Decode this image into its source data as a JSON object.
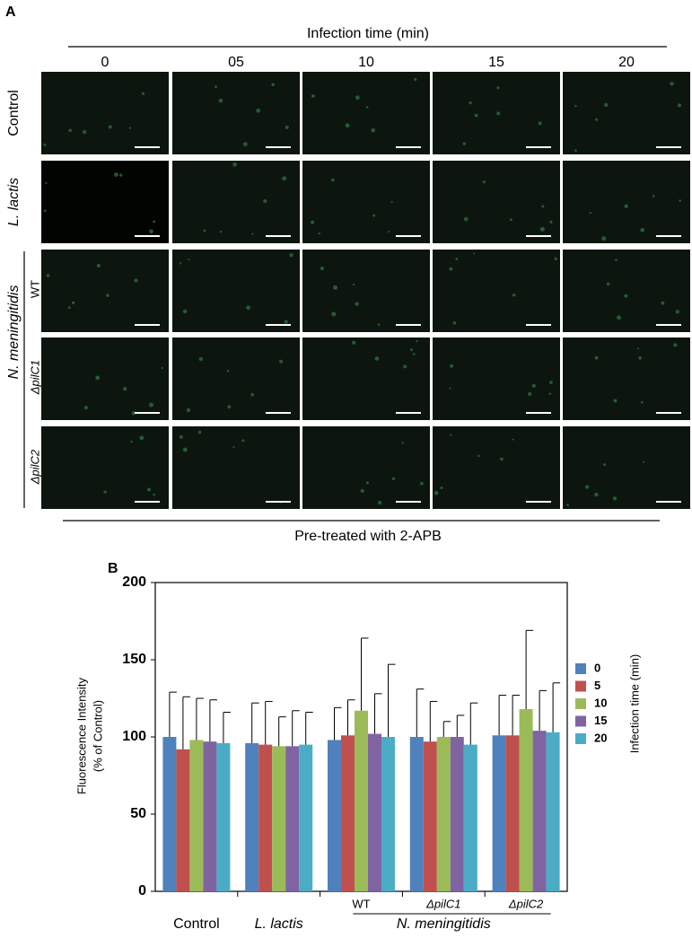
{
  "panel_a": {
    "label": "A",
    "header": "Infection time  (min)",
    "columns": [
      "0",
      "05",
      "10",
      "15",
      "20"
    ],
    "rows": [
      "Control",
      "L. lactis",
      "WT",
      "ΔpilC1",
      "ΔpilC2"
    ],
    "group_label": "N. meningitidis",
    "footer": "Pre-treated with 2-APB"
  },
  "chart_data": {
    "type": "bar",
    "panel_label": "B",
    "y_label": [
      "Fluorescence Intensity",
      "(% of Control)"
    ],
    "categories": [
      "Control",
      "L. lactis",
      "WT",
      "ΔpilC1",
      "ΔpilC2"
    ],
    "category_group": "N. meningitidis",
    "legend_title": "Infection time  (min)",
    "ylim": [
      0,
      200
    ],
    "yticks": [
      0,
      50,
      100,
      150,
      200
    ],
    "series": [
      {
        "name": "0",
        "color": "#4f81bd",
        "values": [
          100,
          96,
          98,
          100,
          101
        ],
        "errors": [
          29,
          26,
          21,
          31,
          26
        ]
      },
      {
        "name": "5",
        "color": "#c0504d",
        "values": [
          92,
          95,
          101,
          97,
          101
        ],
        "errors": [
          34,
          28,
          23,
          26,
          26
        ]
      },
      {
        "name": "10",
        "color": "#9bbb59",
        "values": [
          98,
          94,
          117,
          100,
          118
        ],
        "errors": [
          27,
          19,
          47,
          10,
          51
        ]
      },
      {
        "name": "15",
        "color": "#8064a2",
        "values": [
          97,
          94,
          102,
          100,
          104
        ],
        "errors": [
          27,
          23,
          26,
          14,
          26
        ]
      },
      {
        "name": "20",
        "color": "#4bacc6",
        "values": [
          96,
          95,
          100,
          95,
          103
        ],
        "errors": [
          20,
          21,
          47,
          27,
          32
        ]
      }
    ]
  }
}
